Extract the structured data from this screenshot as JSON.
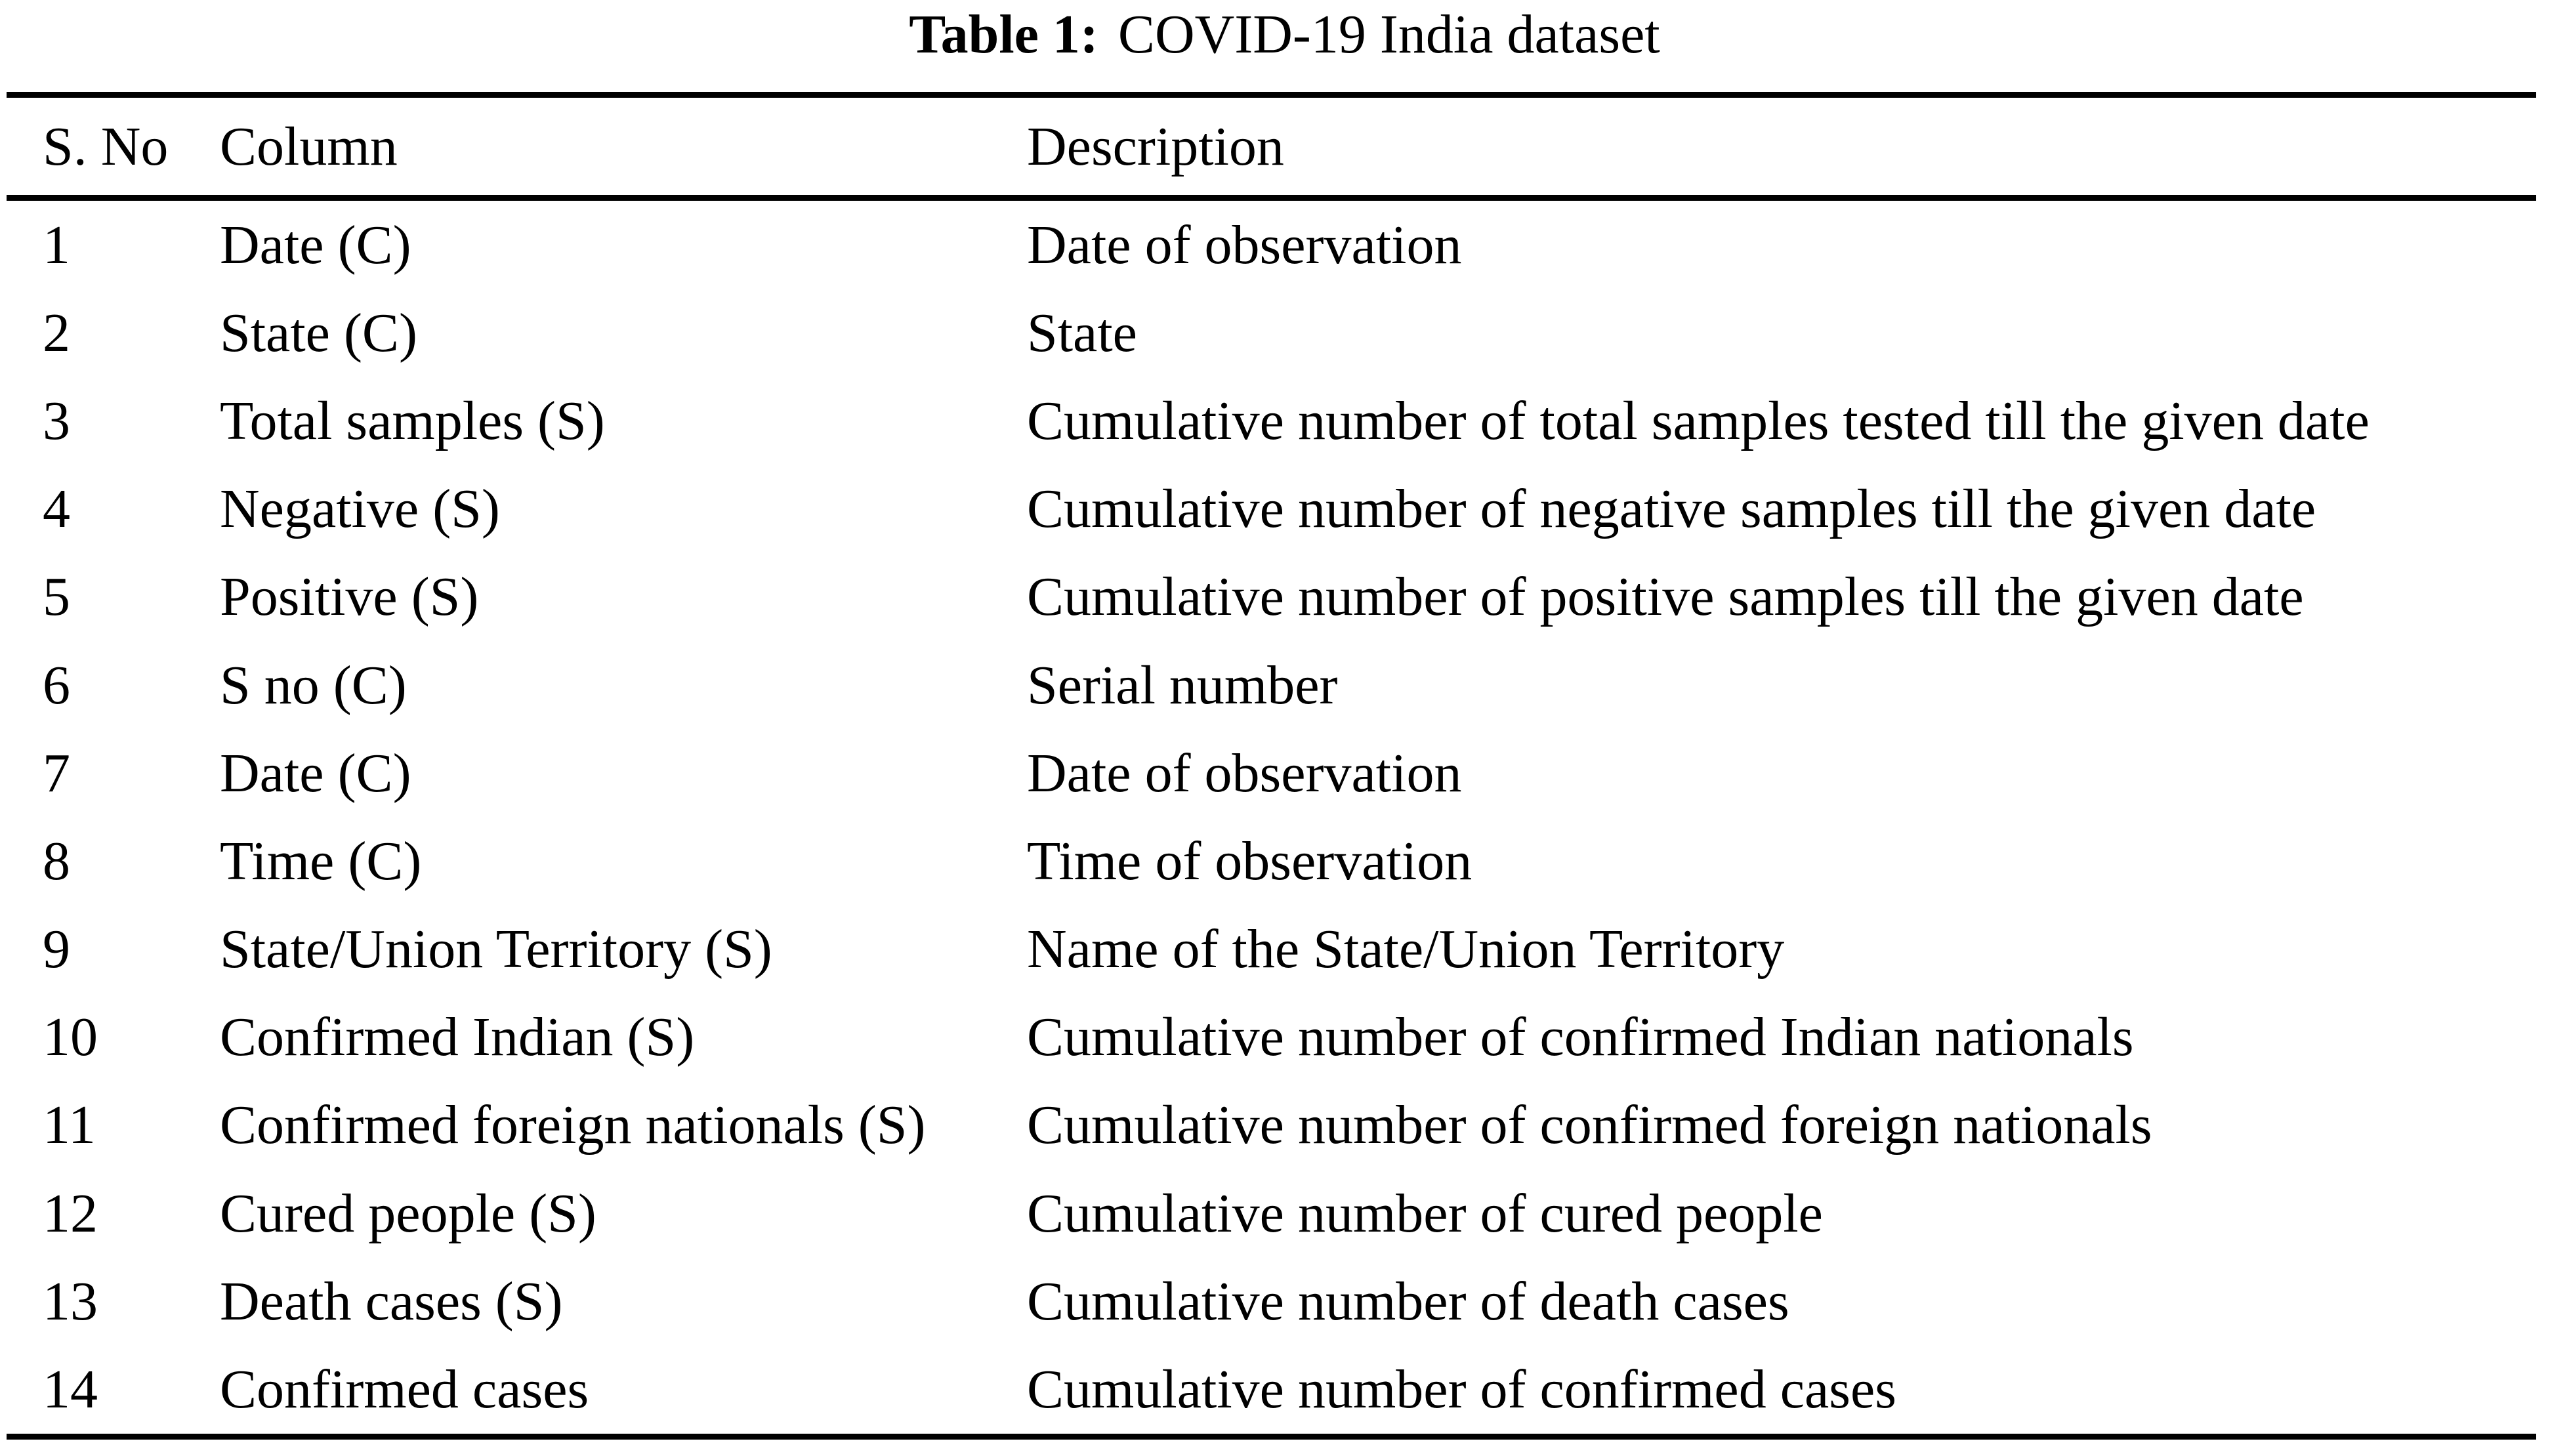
{
  "colors": {
    "background": "#ffffff",
    "text": "#000000",
    "rule": "#000000"
  },
  "table": {
    "caption": {
      "label": "Table 1:",
      "title": "COVID-19 India dataset"
    },
    "headers": [
      "S. No",
      "Column",
      "Description"
    ],
    "rows": [
      {
        "s_no": "1",
        "column": "Date (C)",
        "description": "Date of observation"
      },
      {
        "s_no": "2",
        "column": "State (C)",
        "description": "State"
      },
      {
        "s_no": "3",
        "column": "Total samples (S)",
        "description": "Cumulative number of total samples tested till the given date"
      },
      {
        "s_no": "4",
        "column": "Negative (S)",
        "description": "Cumulative number of negative samples till the given date"
      },
      {
        "s_no": "5",
        "column": "Positive (S)",
        "description": "Cumulative number of positive samples till the given date"
      },
      {
        "s_no": "6",
        "column": "S no (C)",
        "description": "Serial number"
      },
      {
        "s_no": "7",
        "column": "Date (C)",
        "description": "Date of observation"
      },
      {
        "s_no": "8",
        "column": "Time (C)",
        "description": "Time of observation"
      },
      {
        "s_no": "9",
        "column": "State/Union Territory (S)",
        "description": "Name of the State/Union Territory"
      },
      {
        "s_no": "10",
        "column": "Confirmed Indian (S)",
        "description": "Cumulative number of confirmed Indian nationals"
      },
      {
        "s_no": "11",
        "column": "Confirmed foreign nationals (S)",
        "description": "Cumulative number of confirmed foreign nationals"
      },
      {
        "s_no": "12",
        "column": "Cured people (S)",
        "description": "Cumulative number of cured people"
      },
      {
        "s_no": "13",
        "column": "Death cases (S)",
        "description": "Cumulative number of death cases"
      },
      {
        "s_no": "14",
        "column": "Confirmed cases",
        "description": "Cumulative number of confirmed cases"
      }
    ]
  }
}
